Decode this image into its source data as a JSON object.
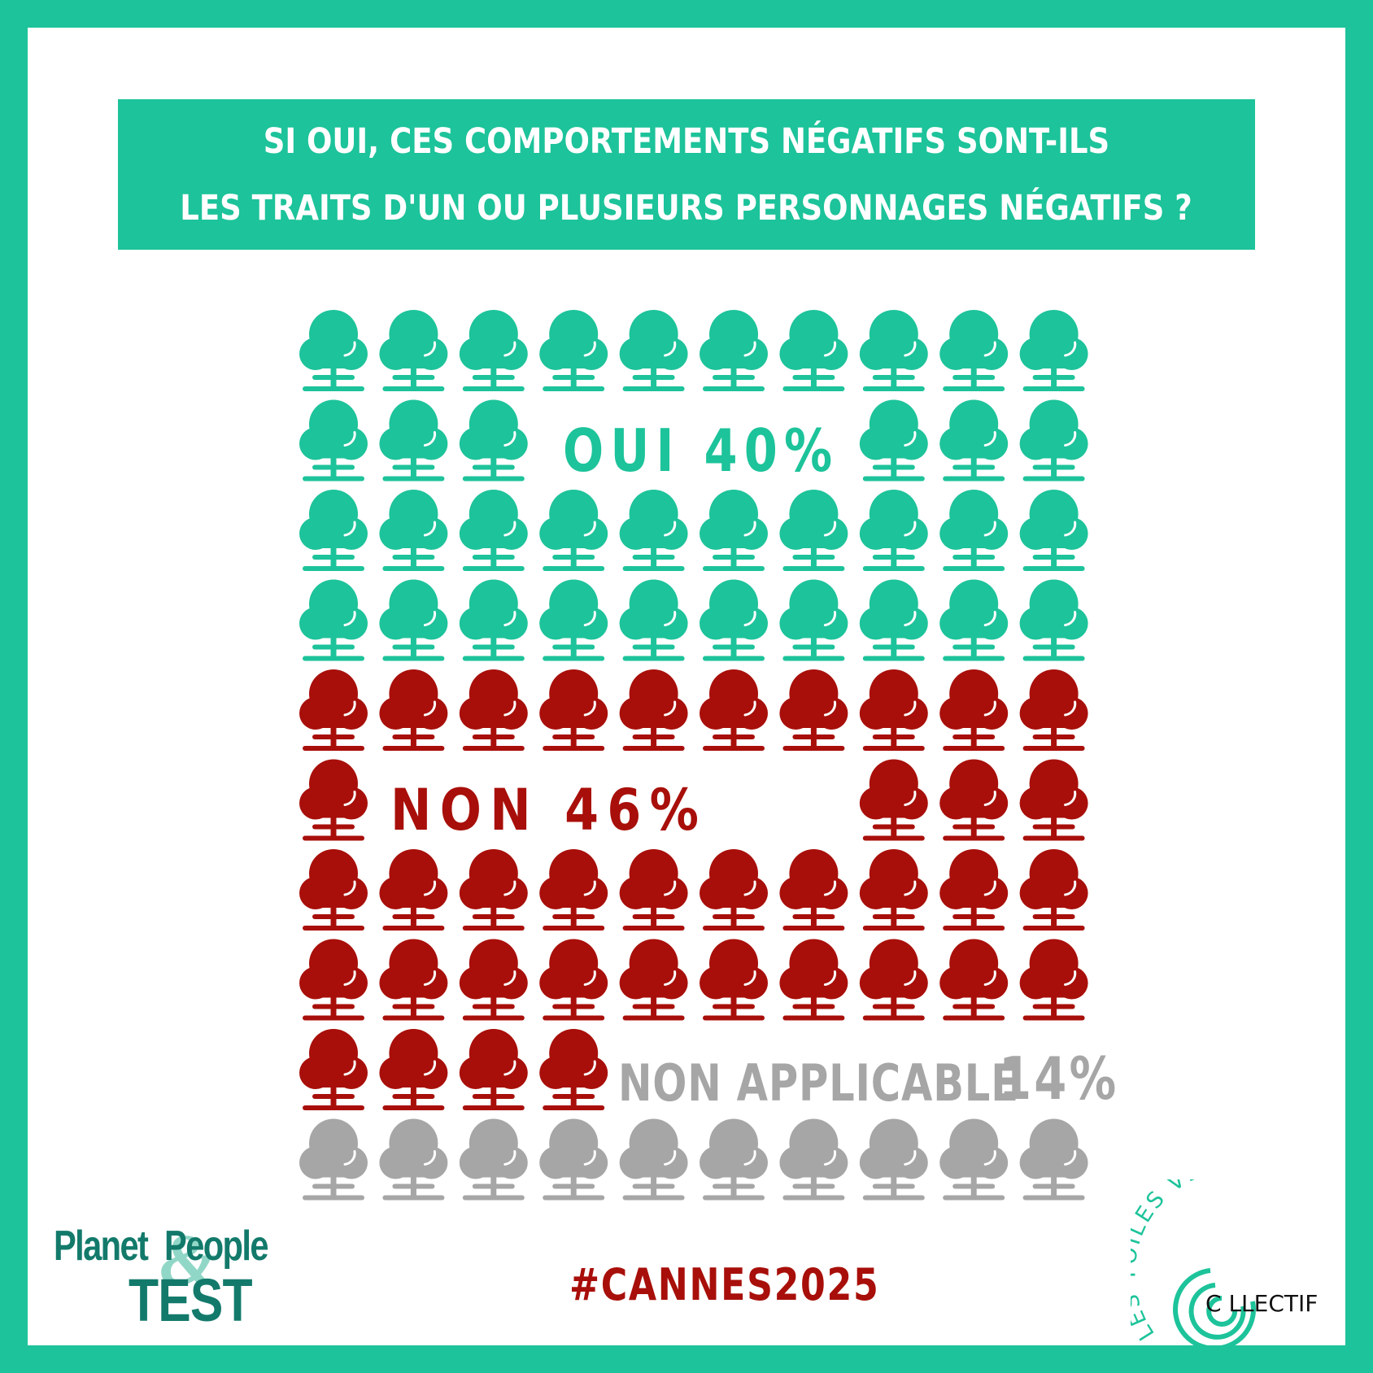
{
  "title": {
    "line1": "SI OUI, CES COMPORTEMENTS NÉGATIFS SONT-ILS",
    "line2": "LES TRAITS D'UN OU PLUSIEURS PERSONNAGES NÉGATIFS ?"
  },
  "labels": {
    "oui": "OUI 40%",
    "non": "NON 46%",
    "na_text": "NON APPLICABLE",
    "na_pct": "14%"
  },
  "colors": {
    "frame": "#1dc39a",
    "oui": "#1dc39a",
    "non": "#a80f0a",
    "na": "#a6a6a6",
    "logo_dark": "#137a6b",
    "logo_light": "#86d3c1"
  },
  "icons": {
    "unit": "tree-icon"
  },
  "chart_data": {
    "type": "waffle",
    "title": "SI OUI, CES COMPORTEMENTS NÉGATIFS SONT-ILS LES TRAITS D'UN OU PLUSIEURS PERSONNAGES NÉGATIFS ?",
    "grid": {
      "rows": 10,
      "cols": 10,
      "total": 100
    },
    "categories": [
      "OUI",
      "NON",
      "NON APPLICABLE"
    ],
    "values": [
      40,
      46,
      14
    ],
    "unit": "%",
    "series_colors": [
      "#1dc39a",
      "#a80f0a",
      "#a6a6a6"
    ]
  },
  "footer": {
    "hashtag": "#CANNES2025",
    "logo_left": {
      "line1": "Planet",
      "amp": "&",
      "line1b": "People",
      "line2": "TEST"
    },
    "logo_right": {
      "arc_text": "LES TOILES VERTES",
      "word": "C  LLECTIF"
    }
  }
}
